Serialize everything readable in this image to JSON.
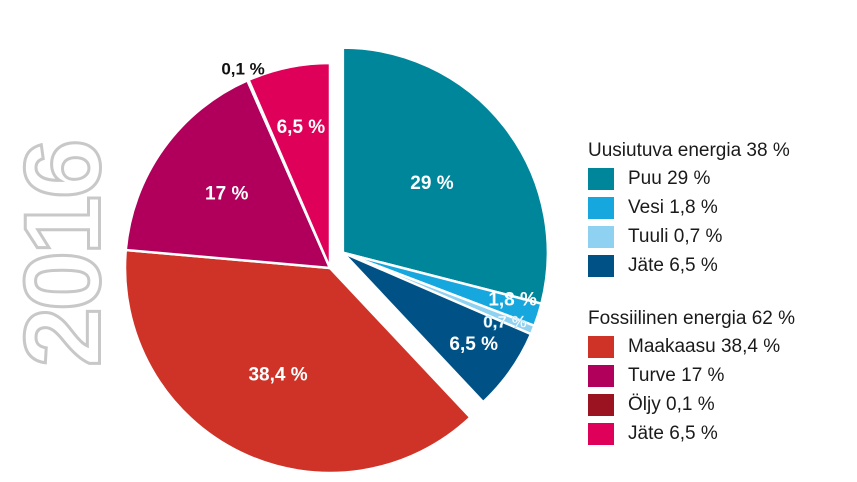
{
  "year_label": "2016",
  "chart_data": {
    "type": "pie",
    "exploded_group": "Uusiutuva energia",
    "slices": [
      {
        "label": "Puu",
        "value": 29,
        "value_label": "29 %",
        "group": "Uusiutuva energia",
        "color": "#00869a"
      },
      {
        "label": "Vesi",
        "value": 1.8,
        "value_label": "1,8 %",
        "group": "Uusiutuva energia",
        "color": "#17a7df"
      },
      {
        "label": "Tuuli",
        "value": 0.7,
        "value_label": "0,7 %",
        "group": "Uusiutuva energia",
        "color": "#8ed1f0"
      },
      {
        "label": "Jäte",
        "value": 6.5,
        "value_label": "6,5 %",
        "group": "Uusiutuva energia",
        "color": "#005286"
      },
      {
        "label": "Maakaasu",
        "value": 38.4,
        "value_label": "38,4 %",
        "group": "Fossiilinen energia",
        "color": "#cf3327"
      },
      {
        "label": "Turve",
        "value": 17,
        "value_label": "17 %",
        "group": "Fossiilinen energia",
        "color": "#b0005b"
      },
      {
        "label": "Öljy",
        "value": 0.1,
        "value_label": "0,1 %",
        "group": "Fossiilinen energia",
        "color": "#9b1320"
      },
      {
        "label": "Jäte",
        "value": 6.5,
        "value_label": "6,5 %",
        "group": "Fossiilinen energia",
        "color": "#de0059"
      }
    ],
    "legend": {
      "placement": "right",
      "groups": [
        {
          "title": "Uusiutuva energia 38 %",
          "items": [
            {
              "label": "Puu 29 %",
              "color": "#00869a"
            },
            {
              "label": "Vesi 1,8 %",
              "color": "#17a7df"
            },
            {
              "label": "Tuuli 0,7 %",
              "color": "#8ed1f0"
            },
            {
              "label": "Jäte 6,5 %",
              "color": "#005286"
            }
          ]
        },
        {
          "title": "Fossiilinen energia 62 %",
          "items": [
            {
              "label": "Maakaasu 38,4 %",
              "color": "#cf3327"
            },
            {
              "label": "Turve 17 %",
              "color": "#b0005b"
            },
            {
              "label": "Öljy 0,1 %",
              "color": "#9b1320"
            },
            {
              "label": "Jäte 6,5 %",
              "color": "#de0059"
            }
          ]
        }
      ]
    }
  }
}
